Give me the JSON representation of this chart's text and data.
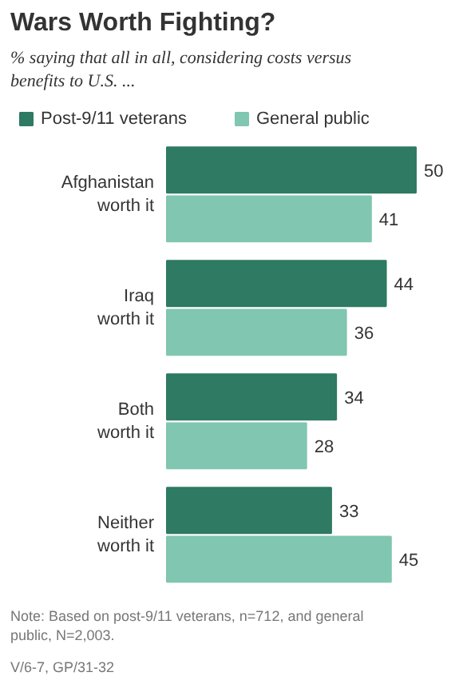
{
  "chart_data": {
    "type": "bar",
    "orientation": "horizontal",
    "title": "Wars Worth Fighting?",
    "subtitle": "% saying that all in all, considering costs versus benefits to U.S. ...",
    "categories": [
      "Afghanistan\nworth it",
      "Iraq\nworth it",
      "Both\nworth it",
      "Neither\nworth it"
    ],
    "series": [
      {
        "name": "Post-9/11 veterans",
        "color": "#2e7a62",
        "values": [
          50,
          44,
          34,
          33
        ]
      },
      {
        "name": "General public",
        "color": "#80c6b1",
        "values": [
          41,
          36,
          28,
          45
        ]
      }
    ],
    "data_labels": true,
    "legend": "top",
    "annotations": [
      "Note: Based on post-9/11 veterans, n=712, and general public, N=2,003.",
      "V/6-7, GP/31-32"
    ]
  }
}
